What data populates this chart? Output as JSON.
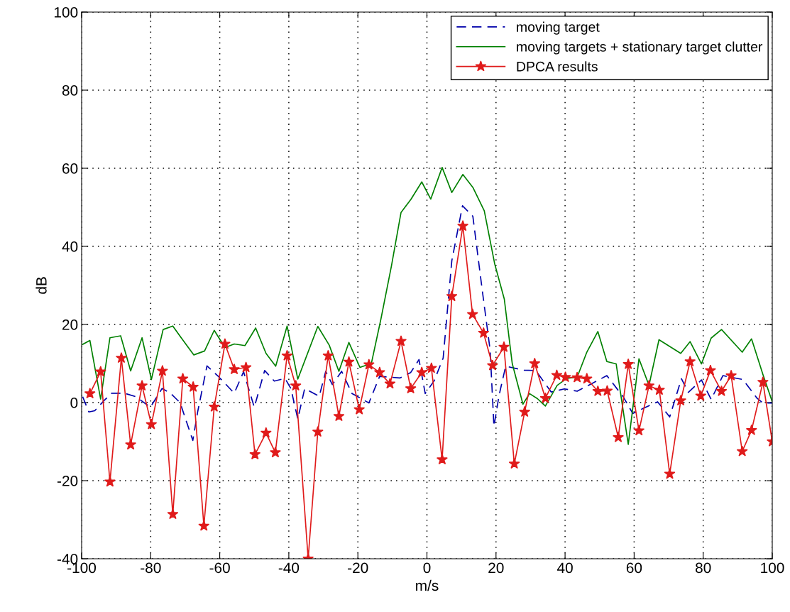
{
  "chart_data": {
    "type": "line",
    "xlabel": "m/s",
    "ylabel": "dB",
    "xlim": [
      -100,
      100
    ],
    "ylim": [
      -40,
      100
    ],
    "xticks": [
      -100,
      -80,
      -60,
      -40,
      -20,
      0,
      20,
      40,
      60,
      80,
      100
    ],
    "yticks": [
      -40,
      -20,
      0,
      20,
      40,
      60,
      80,
      100
    ],
    "grid": true,
    "legend": "top right",
    "series": [
      {
        "name": "moving target",
        "color": "#0000aa",
        "line_style": "dashed",
        "marker": "none",
        "x": [
          -99.7,
          -97.9,
          -96.2,
          -93.4,
          -91.3,
          -87.6,
          -84.3,
          -80.1,
          -76.7,
          -74.3,
          -71.5,
          -67.8,
          -66.4,
          -63.7,
          -60.3,
          -55.8,
          -53.1,
          -50,
          -47,
          -44.2,
          -41.1,
          -39.4,
          -37.4,
          -35.4,
          -31.2,
          -29.3,
          -27.4,
          -24.7,
          -21.7,
          -16.8,
          -13.7,
          -7.8,
          -4.7,
          -2.3,
          -0.5,
          2.1,
          4.7,
          7.2,
          10.3,
          13.3,
          16.0,
          18.3,
          19.4,
          20.9,
          22.8,
          28.1,
          31.5,
          36,
          39.8,
          43.5,
          47,
          52.1,
          56.9,
          59.6,
          62.4,
          66.8,
          70.3,
          73.7,
          75.7,
          79.5,
          82.3,
          85.7,
          91.5,
          95.6,
          97.3,
          100
        ],
        "values": [
          1.5,
          -2.4,
          -2.1,
          0.6,
          2.4,
          2.4,
          1.5,
          -1.2,
          3.6,
          2.4,
          0,
          -9.7,
          -2.4,
          9.4,
          6.6,
          2.4,
          7.9,
          -1.2,
          8.2,
          5.5,
          6.2,
          3.6,
          -4.2,
          3.6,
          1.6,
          8.0,
          4.6,
          8.0,
          2.3,
          -0.1,
          6.7,
          6.3,
          7.7,
          11.0,
          2.3,
          5.6,
          11.4,
          36.3,
          50.4,
          47.7,
          28.9,
          13.4,
          -6.1,
          1.9,
          9.3,
          8.3,
          8.2,
          2.7,
          3.5,
          2.9,
          4.5,
          6.9,
          1.4,
          -2.8,
          -1.6,
          0.2,
          -3.7,
          6.1,
          2.6,
          5.8,
          0.8,
          6.9,
          5.9,
          1.1,
          -0.1,
          -0.1
        ]
      },
      {
        "name": "moving targets + stationary target clutter",
        "color": "#008000",
        "line_style": "solid",
        "marker": "none",
        "x": [
          -99.7,
          -97.6,
          -94.5,
          -91.8,
          -88.7,
          -85.8,
          -82.5,
          -79.8,
          -76.4,
          -73.6,
          -70.6,
          -67.5,
          -64.4,
          -61.6,
          -58.5,
          -55.8,
          -52.7,
          -49.6,
          -46.6,
          -43.8,
          -40.5,
          -37.4,
          -31.6,
          -28.3,
          -25.5,
          -22.6,
          -19.4,
          -16.1,
          -13.3,
          -10.3,
          -7.5,
          -4.6,
          -1.5,
          1.1,
          4.4,
          7.2,
          10.4,
          13.3,
          16.6,
          19.6,
          22.4,
          24.7,
          27.8,
          29.7,
          32.0,
          34.3,
          37.7,
          40.5,
          43.5,
          46.3,
          49.5,
          52.1,
          54.8,
          58.3,
          61.4,
          64.3,
          67.2,
          73.5,
          76.2,
          79.5,
          82.3,
          85.3,
          91.3,
          94.0,
          97.3,
          100
        ],
        "values": [
          14.9,
          15.9,
          0.9,
          16.6,
          17.1,
          8.1,
          16.6,
          5.9,
          18.7,
          19.6,
          15.9,
          12.2,
          13.2,
          18.5,
          14.1,
          15.0,
          14.6,
          19.1,
          12.6,
          9.3,
          19.6,
          6.0,
          19.5,
          14.7,
          8.0,
          15.4,
          9.0,
          10.0,
          21.5,
          34.9,
          48.7,
          52.1,
          56.5,
          52.1,
          60.2,
          53.8,
          58.4,
          55.1,
          49.1,
          35.6,
          26.5,
          10.0,
          -0.4,
          2.3,
          1.0,
          -0.9,
          4.4,
          6.2,
          6.5,
          12.9,
          18.2,
          10.5,
          9.9,
          -10.7,
          11.2,
          4.4,
          16.1,
          12.6,
          15.6,
          9.9,
          16.5,
          18.7,
          12.9,
          16.3,
          7.2,
          0.2
        ]
      },
      {
        "name": "DPCA results",
        "color": "#e01b1b",
        "line_style": "solid",
        "marker": "star",
        "x": [
          -97.6,
          -94.5,
          -91.8,
          -88.5,
          -85.8,
          -82.5,
          -79.8,
          -76.6,
          -73.6,
          -70.7,
          -67.7,
          -64.6,
          -61.6,
          -58.5,
          -55.8,
          -52.4,
          -49.8,
          -46.6,
          -43.9,
          -40.5,
          -38,
          -34.4,
          -31.6,
          -28.6,
          -25.5,
          -22.6,
          -19.6,
          -16.8,
          -13.7,
          -10.7,
          -7.5,
          -4.7,
          -1.5,
          1.3,
          4.4,
          7.2,
          10.4,
          13.2,
          16.4,
          19.0,
          22.3,
          25.3,
          28.3,
          31.2,
          34.3,
          37.6,
          40.1,
          43.5,
          46.3,
          49.5,
          52.2,
          55.4,
          58.3,
          61.4,
          64.3,
          67.3,
          70.3,
          73.5,
          76.2,
          79.3,
          82.1,
          85.3,
          88.1,
          91.3,
          94.0,
          97.3,
          100
        ],
        "values": [
          2.3,
          7.9,
          -20.3,
          11.4,
          -10.8,
          4.3,
          -5.6,
          8.1,
          -28.6,
          6.1,
          4.0,
          -31.6,
          -1.1,
          15.0,
          8.5,
          9.0,
          -13.3,
          -7.8,
          -12.8,
          12.0,
          4.3,
          -40,
          -7.5,
          12.0,
          -3.5,
          10.4,
          -1.8,
          9.7,
          7.7,
          4.8,
          15.7,
          3.6,
          7.7,
          8.8,
          -14.6,
          27.2,
          45.2,
          22.6,
          17.8,
          9.5,
          14.2,
          -15.7,
          -2.4,
          10.0,
          1.1,
          7.0,
          6.5,
          6.4,
          6.1,
          2.9,
          3.0,
          -8.9,
          9.8,
          -7.2,
          4.3,
          3.2,
          -18.3,
          0.5,
          10.5,
          1.7,
          8.2,
          2.9,
          6.9,
          -12.5,
          -7.1,
          5.2,
          -10
        ]
      }
    ]
  }
}
